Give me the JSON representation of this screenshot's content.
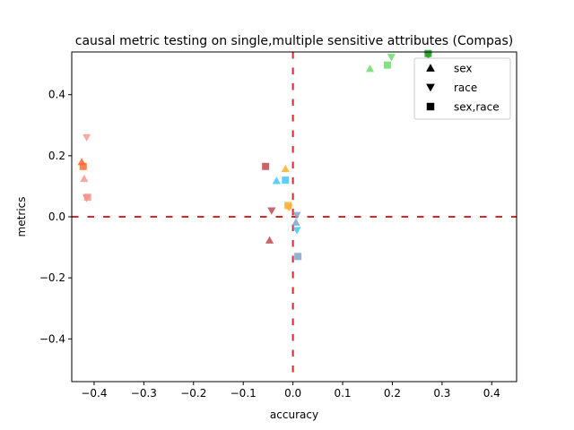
{
  "chart_data": {
    "type": "scatter",
    "title": "causal metric testing on single,multiple sensitive attributes (Compas)",
    "xlabel": "accuracy",
    "ylabel": "metrics",
    "xlim": [
      -0.445,
      0.45
    ],
    "ylim": [
      -0.54,
      0.54
    ],
    "x_ticks": [
      -0.4,
      -0.3,
      -0.2,
      -0.1,
      0.0,
      0.1,
      0.2,
      0.3,
      0.4
    ],
    "x_tick_labels": [
      "−0.4",
      "−0.3",
      "−0.2",
      "−0.1",
      "0.0",
      "0.1",
      "0.2",
      "0.3",
      "0.4"
    ],
    "y_ticks": [
      -0.4,
      -0.2,
      0.0,
      0.2,
      0.4
    ],
    "y_tick_labels": [
      "−0.4",
      "−0.2",
      "0.0",
      "0.2",
      "0.4"
    ],
    "grid": false,
    "reference_lines": {
      "horizontal_y": 0.0,
      "vertical_x": 0.0,
      "color": "#d62728",
      "style": "dashed"
    },
    "legend": {
      "placement": "top-right",
      "entries": [
        {
          "label": "sex",
          "marker": "triangle-up"
        },
        {
          "label": "race",
          "marker": "triangle-down"
        },
        {
          "label": "sex,race",
          "marker": "square"
        }
      ]
    },
    "points": [
      {
        "x": -0.425,
        "y": 0.18,
        "marker": "triangle-up",
        "color": "#ff6a33"
      },
      {
        "x": -0.42,
        "y": 0.125,
        "marker": "triangle-up",
        "color": "#f59a93"
      },
      {
        "x": -0.415,
        "y": 0.26,
        "marker": "triangle-down",
        "color": "#f59a93"
      },
      {
        "x": -0.415,
        "y": 0.062,
        "marker": "triangle-down",
        "color": "#ff6a33"
      },
      {
        "x": -0.422,
        "y": 0.165,
        "marker": "square",
        "color": "#ff6a33"
      },
      {
        "x": -0.413,
        "y": 0.064,
        "marker": "square",
        "color": "#f59a93"
      },
      {
        "x": -0.055,
        "y": 0.165,
        "marker": "square",
        "color": "#c04a50"
      },
      {
        "x": -0.047,
        "y": -0.077,
        "marker": "triangle-up",
        "color": "#c04a50"
      },
      {
        "x": -0.043,
        "y": 0.02,
        "marker": "triangle-down",
        "color": "#c04a50"
      },
      {
        "x": -0.033,
        "y": 0.118,
        "marker": "triangle-up",
        "color": "#3ec8ff"
      },
      {
        "x": -0.015,
        "y": 0.157,
        "marker": "triangle-up",
        "color": "#ffb02e"
      },
      {
        "x": -0.015,
        "y": 0.12,
        "marker": "square",
        "color": "#3ec8ff"
      },
      {
        "x": -0.01,
        "y": 0.037,
        "marker": "square",
        "color": "#ffb02e"
      },
      {
        "x": -0.008,
        "y": 0.03,
        "marker": "triangle-down",
        "color": "#ffb02e"
      },
      {
        "x": 0.006,
        "y": -0.018,
        "marker": "triangle-up",
        "color": "#7fa6c9"
      },
      {
        "x": 0.008,
        "y": 0.005,
        "marker": "triangle-down",
        "color": "#7fa6c9"
      },
      {
        "x": 0.008,
        "y": -0.044,
        "marker": "triangle-down",
        "color": "#3ec8ff"
      },
      {
        "x": 0.01,
        "y": -0.13,
        "marker": "square",
        "color": "#7fa6c9"
      },
      {
        "x": 0.155,
        "y": 0.485,
        "marker": "triangle-up",
        "color": "#6ddc6d"
      },
      {
        "x": 0.19,
        "y": 0.497,
        "marker": "square",
        "color": "#6ddc6d"
      },
      {
        "x": 0.198,
        "y": 0.523,
        "marker": "triangle-down",
        "color": "#6ddc6d"
      },
      {
        "x": 0.272,
        "y": 0.528,
        "marker": "triangle-down",
        "color": "#2ca02c"
      },
      {
        "x": 0.272,
        "y": 0.535,
        "marker": "square",
        "color": "#2ca02c"
      },
      {
        "x": 0.274,
        "y": 0.495,
        "marker": "triangle-up",
        "color": "#9be89b"
      }
    ]
  }
}
